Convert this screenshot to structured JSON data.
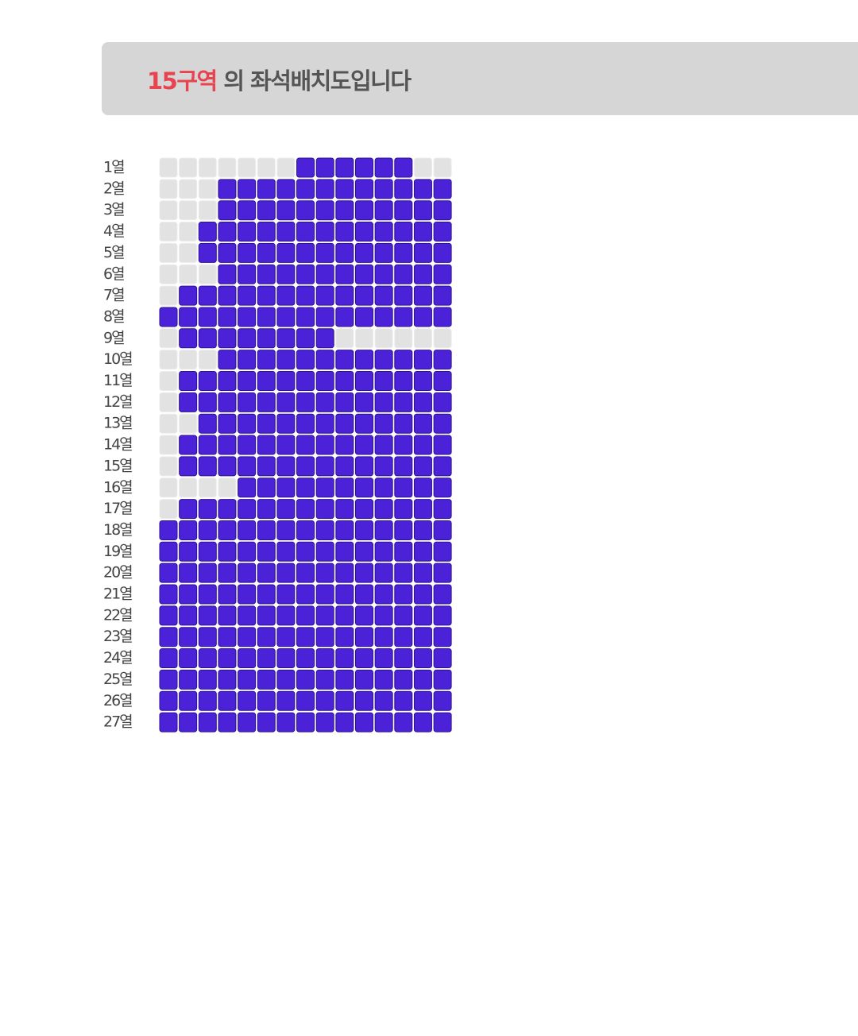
{
  "header": {
    "zone": "15구역",
    "title": " 의 좌석배치도입니다"
  },
  "seat_map": {
    "colors": {
      "available": "#4b22d8",
      "unavailable": "#e2e2e2"
    },
    "rows": [
      {
        "label": "1열",
        "seats": [
          0,
          0,
          0,
          0,
          0,
          0,
          0,
          1,
          1,
          1,
          1,
          1,
          1,
          0,
          0
        ]
      },
      {
        "label": "2열",
        "seats": [
          0,
          0,
          0,
          1,
          1,
          1,
          1,
          1,
          1,
          1,
          1,
          1,
          1,
          1,
          1
        ]
      },
      {
        "label": "3열",
        "seats": [
          0,
          0,
          0,
          1,
          1,
          1,
          1,
          1,
          1,
          1,
          1,
          1,
          1,
          1,
          1
        ]
      },
      {
        "label": "4열",
        "seats": [
          0,
          0,
          1,
          1,
          1,
          1,
          1,
          1,
          1,
          1,
          1,
          1,
          1,
          1,
          1
        ]
      },
      {
        "label": "5열",
        "seats": [
          0,
          0,
          1,
          1,
          1,
          1,
          1,
          1,
          1,
          1,
          1,
          1,
          1,
          1,
          1
        ]
      },
      {
        "label": "6열",
        "seats": [
          0,
          0,
          0,
          1,
          1,
          1,
          1,
          1,
          1,
          1,
          1,
          1,
          1,
          1,
          1
        ]
      },
      {
        "label": "7열",
        "seats": [
          0,
          1,
          1,
          1,
          1,
          1,
          1,
          1,
          1,
          1,
          1,
          1,
          1,
          1,
          1
        ]
      },
      {
        "label": "8열",
        "seats": [
          1,
          1,
          1,
          1,
          1,
          1,
          1,
          1,
          1,
          1,
          1,
          1,
          1,
          1,
          1
        ]
      },
      {
        "label": "9열",
        "seats": [
          0,
          1,
          1,
          1,
          1,
          1,
          1,
          1,
          1,
          0,
          0,
          0,
          0,
          0,
          0
        ]
      },
      {
        "label": "10열",
        "seats": [
          0,
          0,
          0,
          1,
          1,
          1,
          1,
          1,
          1,
          1,
          1,
          1,
          1,
          1,
          1
        ]
      },
      {
        "label": "11열",
        "seats": [
          0,
          1,
          1,
          1,
          1,
          1,
          1,
          1,
          1,
          1,
          1,
          1,
          1,
          1,
          1
        ]
      },
      {
        "label": "12열",
        "seats": [
          0,
          1,
          1,
          1,
          1,
          1,
          1,
          1,
          1,
          1,
          1,
          1,
          1,
          1,
          1
        ]
      },
      {
        "label": "13열",
        "seats": [
          0,
          0,
          1,
          1,
          1,
          1,
          1,
          1,
          1,
          1,
          1,
          1,
          1,
          1,
          1
        ]
      },
      {
        "label": "14열",
        "seats": [
          0,
          1,
          1,
          1,
          1,
          1,
          1,
          1,
          1,
          1,
          1,
          1,
          1,
          1,
          1
        ]
      },
      {
        "label": "15열",
        "seats": [
          0,
          1,
          1,
          1,
          1,
          1,
          1,
          1,
          1,
          1,
          1,
          1,
          1,
          1,
          1
        ]
      },
      {
        "label": "16열",
        "seats": [
          0,
          0,
          0,
          0,
          1,
          1,
          1,
          1,
          1,
          1,
          1,
          1,
          1,
          1,
          1
        ]
      },
      {
        "label": "17열",
        "seats": [
          0,
          1,
          1,
          1,
          1,
          1,
          1,
          1,
          1,
          1,
          1,
          1,
          1,
          1,
          1
        ]
      },
      {
        "label": "18열",
        "seats": [
          1,
          1,
          1,
          1,
          1,
          1,
          1,
          1,
          1,
          1,
          1,
          1,
          1,
          1,
          1
        ]
      },
      {
        "label": "19열",
        "seats": [
          1,
          1,
          1,
          1,
          1,
          1,
          1,
          1,
          1,
          1,
          1,
          1,
          1,
          1,
          1
        ]
      },
      {
        "label": "20열",
        "seats": [
          1,
          1,
          1,
          1,
          1,
          1,
          1,
          1,
          1,
          1,
          1,
          1,
          1,
          1,
          1
        ]
      },
      {
        "label": "21열",
        "seats": [
          1,
          1,
          1,
          1,
          1,
          1,
          1,
          1,
          1,
          1,
          1,
          1,
          1,
          1,
          1
        ]
      },
      {
        "label": "22열",
        "seats": [
          1,
          1,
          1,
          1,
          1,
          1,
          1,
          1,
          1,
          1,
          1,
          1,
          1,
          1,
          1
        ]
      },
      {
        "label": "23열",
        "seats": [
          1,
          1,
          1,
          1,
          1,
          1,
          1,
          1,
          1,
          1,
          1,
          1,
          1,
          1,
          1
        ]
      },
      {
        "label": "24열",
        "seats": [
          1,
          1,
          1,
          1,
          1,
          1,
          1,
          1,
          1,
          1,
          1,
          1,
          1,
          1,
          1
        ]
      },
      {
        "label": "25열",
        "seats": [
          1,
          1,
          1,
          1,
          1,
          1,
          1,
          1,
          1,
          1,
          1,
          1,
          1,
          1,
          1
        ]
      },
      {
        "label": "26열",
        "seats": [
          1,
          1,
          1,
          1,
          1,
          1,
          1,
          1,
          1,
          1,
          1,
          1,
          1,
          1,
          1
        ]
      },
      {
        "label": "27열",
        "seats": [
          1,
          1,
          1,
          1,
          1,
          1,
          1,
          1,
          1,
          1,
          1,
          1,
          1,
          1,
          1
        ]
      }
    ]
  }
}
